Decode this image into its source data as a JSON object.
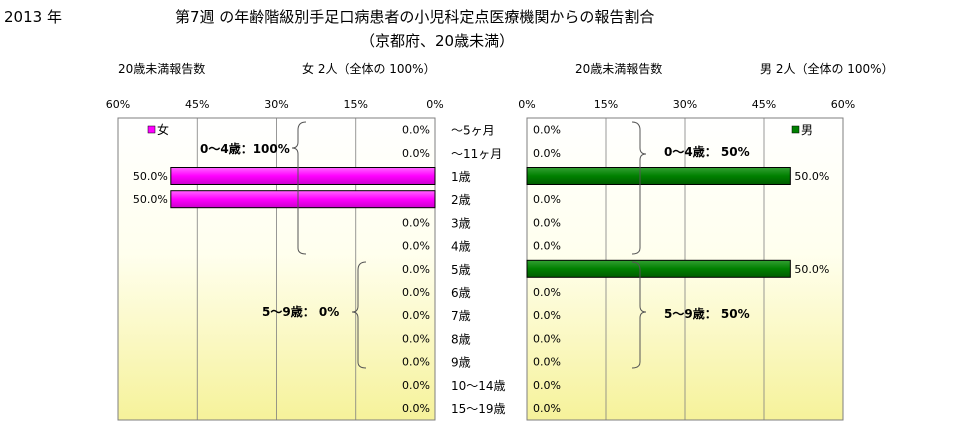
{
  "year_label": "2013 年",
  "title": "第7週 の年齢階級別手足口病患者の小児科定点医療機関からの報告割合",
  "subtitle": "（京都府、20歳未満）",
  "left_header": "20歳未満報告数",
  "left_total": "女  2人（全体の  100%）",
  "right_header": "20歳未満報告数",
  "right_total": "男  2人（全体の  100%）",
  "colors": {
    "female": "#ff00ff",
    "male": "#008000"
  },
  "chart_data": [
    {
      "type": "bar",
      "orientation": "horizontal-reversed",
      "legend": "女",
      "xlim": [
        0,
        60
      ],
      "ticks": [
        "60%",
        "45%",
        "30%",
        "15%",
        "0%"
      ],
      "tick_values": [
        60,
        45,
        30,
        15,
        0
      ],
      "categories": [
        "～5ヶ月",
        "～11ヶ月",
        "1歳",
        "2歳",
        "3歳",
        "4歳",
        "5歳",
        "6歳",
        "7歳",
        "8歳",
        "9歳",
        "10～14歳",
        "15～19歳"
      ],
      "values": [
        0,
        0,
        50,
        50,
        0,
        0,
        0,
        0,
        0,
        0,
        0,
        0,
        0
      ],
      "data_labels": [
        "0.0%",
        "0.0%",
        "50.0%",
        "50.0%",
        "0.0%",
        "0.0%",
        "0.0%",
        "0.0%",
        "0.0%",
        "0.0%",
        "0.0%",
        "0.0%",
        "0.0%"
      ],
      "group_labels": [
        "0～4歳：100%",
        "5～9歳：  0%"
      ]
    },
    {
      "type": "bar",
      "orientation": "horizontal",
      "legend": "男",
      "xlim": [
        0,
        60
      ],
      "ticks": [
        "0%",
        "15%",
        "30%",
        "45%",
        "60%"
      ],
      "tick_values": [
        0,
        15,
        30,
        45,
        60
      ],
      "categories": [
        "～5ヶ月",
        "～11ヶ月",
        "1歳",
        "2歳",
        "3歳",
        "4歳",
        "5歳",
        "6歳",
        "7歳",
        "8歳",
        "9歳",
        "10～14歳",
        "15～19歳"
      ],
      "values": [
        0,
        0,
        50,
        0,
        0,
        0,
        50,
        0,
        0,
        0,
        0,
        0,
        0
      ],
      "data_labels": [
        "0.0%",
        "0.0%",
        "50.0%",
        "0.0%",
        "0.0%",
        "0.0%",
        "50.0%",
        "0.0%",
        "0.0%",
        "0.0%",
        "0.0%",
        "0.0%",
        "0.0%"
      ],
      "group_labels": [
        "0～4歳：  50%",
        "5～9歳：  50%"
      ]
    }
  ]
}
